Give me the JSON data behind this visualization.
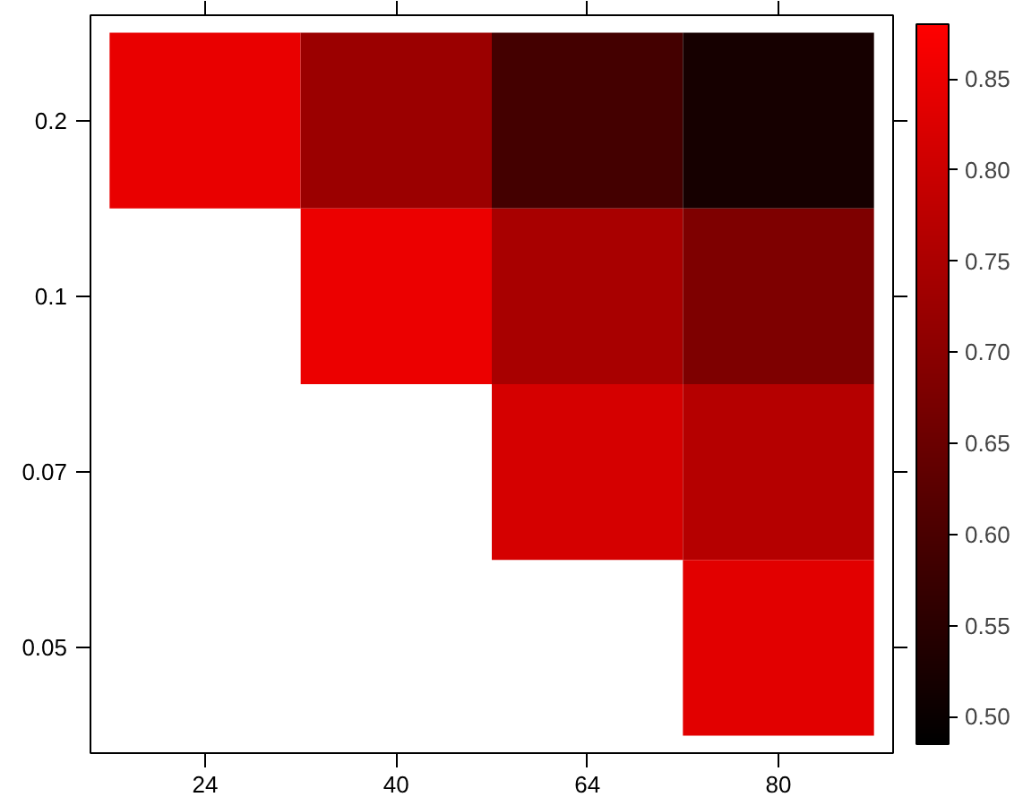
{
  "chart_data": {
    "type": "heatmap",
    "categories": [
      "24",
      "40",
      "64",
      "80"
    ],
    "y_categories": [
      "0.2",
      "0.1",
      "0.07",
      "0.05"
    ],
    "cells": [
      [
        0.845,
        0.725,
        0.59,
        0.52
      ],
      [
        null,
        0.85,
        0.745,
        0.68
      ],
      [
        null,
        null,
        0.815,
        0.765
      ],
      [
        null,
        null,
        null,
        0.835
      ]
    ],
    "clim": [
      0.485,
      0.88
    ],
    "cticks": [
      {
        "value": 0.5,
        "label": "0.50"
      },
      0.55,
      {
        "value": 0.6,
        "label": "0.60"
      },
      0.65,
      {
        "value": 0.7,
        "label": "0.70"
      },
      0.75,
      {
        "value": 0.8,
        "label": "0.80"
      },
      0.85
    ],
    "grid": false
  }
}
